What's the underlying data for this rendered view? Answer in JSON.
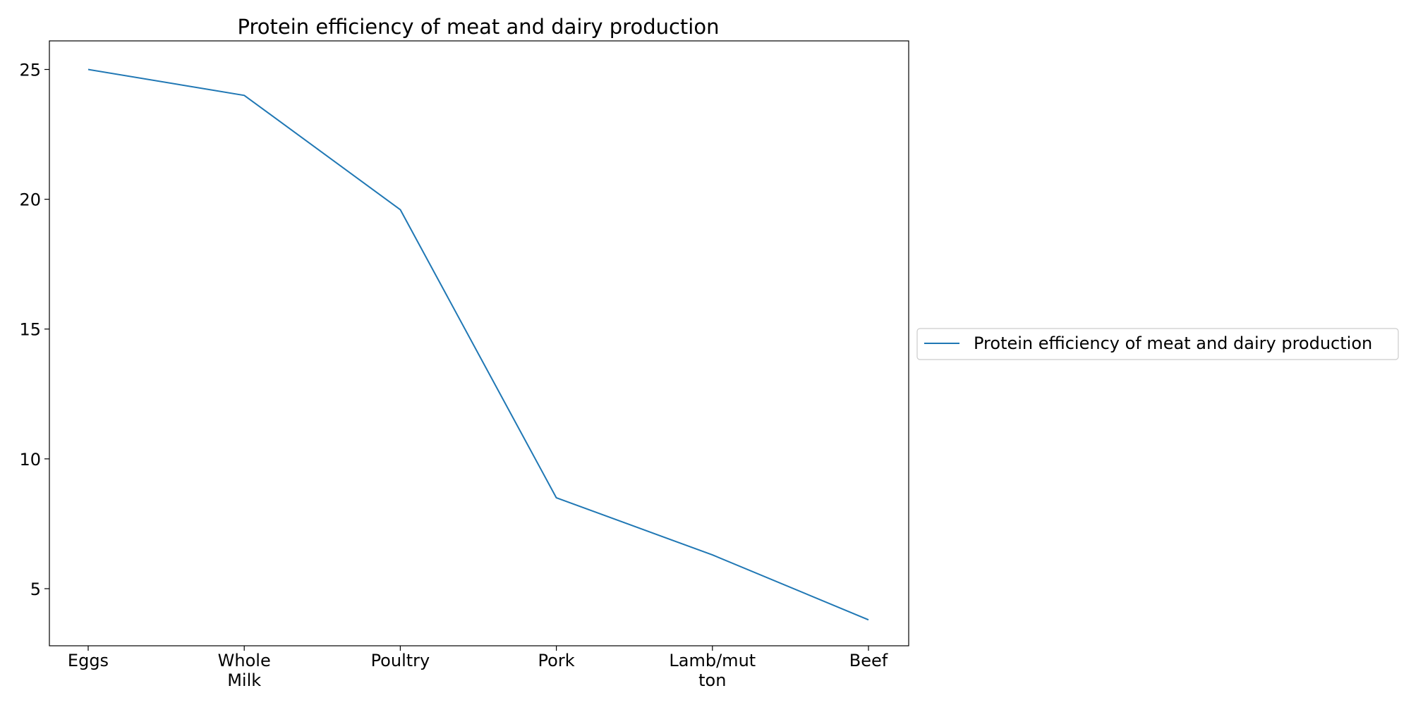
{
  "chart_data": {
    "type": "line",
    "title": "Protein efficiency of meat and dairy production",
    "xlabel": "",
    "ylabel": "",
    "categories": [
      [
        "Eggs"
      ],
      [
        "Whole",
        "Milk"
      ],
      [
        "Poultry"
      ],
      [
        "Pork"
      ],
      [
        "Lamb/mut",
        "ton"
      ],
      [
        "Beef"
      ]
    ],
    "series": [
      {
        "name": "Protein efficiency of meat and dairy production",
        "values": [
          25.0,
          24.0,
          19.6,
          8.5,
          6.3,
          3.8
        ],
        "color": "#1f77b4"
      }
    ],
    "ylim": [
      2.8,
      26.1
    ],
    "yticks": [
      5,
      10,
      15,
      20,
      25
    ],
    "grid": false,
    "legend_position": "right"
  }
}
